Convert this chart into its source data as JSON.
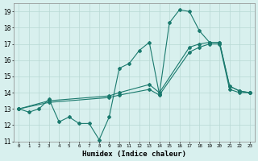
{
  "line1_x": [
    0,
    1,
    2,
    3,
    4,
    5,
    6,
    7,
    8,
    9,
    10,
    11,
    12,
    13,
    14,
    15,
    16,
    17,
    18,
    19,
    20,
    21,
    22,
    23
  ],
  "line1_y": [
    13.0,
    12.8,
    13.0,
    13.6,
    12.2,
    12.5,
    12.1,
    12.1,
    11.1,
    12.5,
    15.5,
    15.8,
    16.6,
    17.1,
    13.9,
    18.3,
    19.1,
    19.0,
    17.8,
    17.1,
    17.1,
    14.4,
    14.1,
    14.0
  ],
  "line2_x": [
    0,
    3,
    9,
    10,
    13,
    14,
    17,
    18,
    19,
    20,
    21,
    22,
    23
  ],
  "line2_y": [
    13.0,
    13.5,
    13.8,
    14.0,
    14.5,
    14.0,
    16.8,
    17.0,
    17.1,
    17.1,
    14.4,
    14.1,
    14.0
  ],
  "line3_x": [
    0,
    3,
    9,
    10,
    13,
    14,
    17,
    18,
    19,
    20,
    21,
    22,
    23
  ],
  "line3_y": [
    13.0,
    13.4,
    13.7,
    13.85,
    14.2,
    13.85,
    16.5,
    16.8,
    17.0,
    17.0,
    14.2,
    14.0,
    14.0
  ],
  "xlabel": "Humidex (Indice chaleur)",
  "xlim": [
    -0.5,
    23.5
  ],
  "ylim": [
    11,
    19.5
  ],
  "yticks": [
    11,
    12,
    13,
    14,
    15,
    16,
    17,
    18,
    19
  ],
  "xticks": [
    0,
    1,
    2,
    3,
    4,
    5,
    6,
    7,
    8,
    9,
    10,
    11,
    12,
    13,
    14,
    15,
    16,
    17,
    18,
    19,
    20,
    21,
    22,
    23
  ],
  "line_color": "#1a7a6e",
  "bg_color": "#d8f0ee",
  "grid_color": "#b8d8d4",
  "markersize": 2.0
}
